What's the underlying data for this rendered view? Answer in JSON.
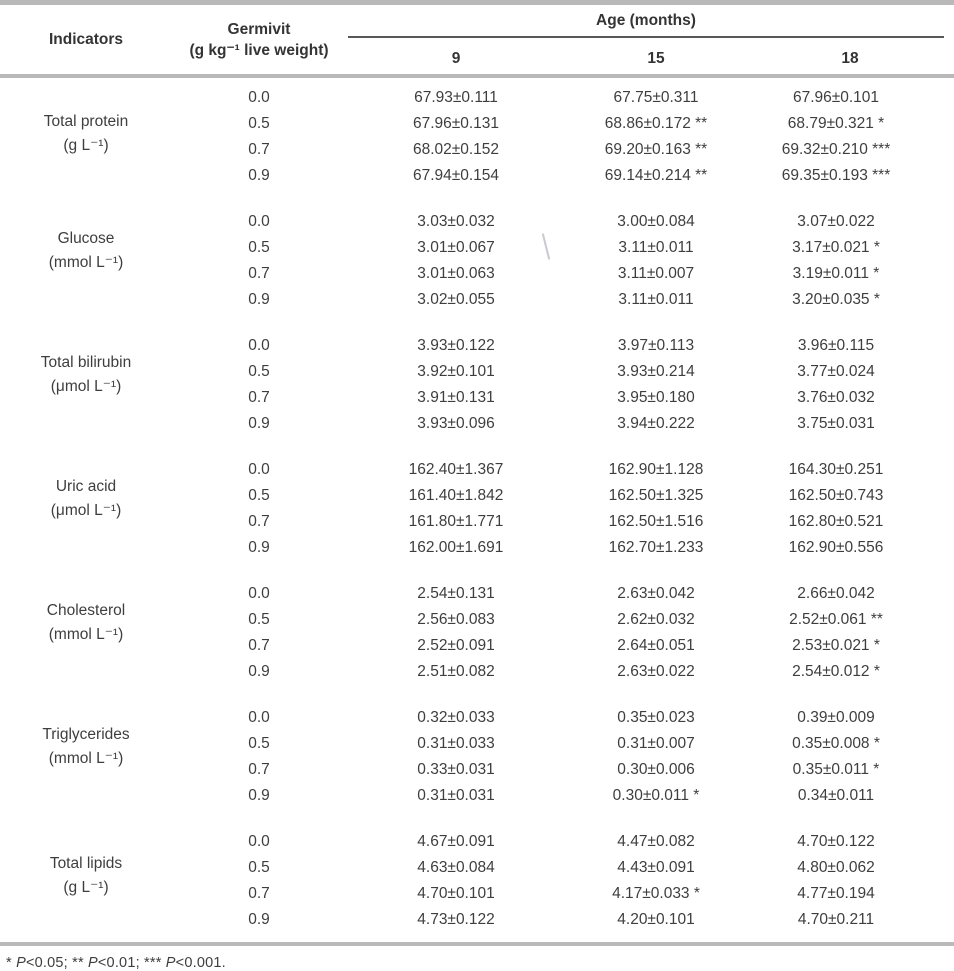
{
  "colors": {
    "rule": "#b9b9b9",
    "age_underline": "#58585a",
    "text": "#3e3e3e",
    "header_text": "#343434",
    "background": "#ffffff",
    "artifact": "#c9c9cf"
  },
  "table": {
    "header": {
      "indicators": "Indicators",
      "germivit_line1": "Germivit",
      "germivit_line2": "(g kg⁻¹ live weight)",
      "age_label": "Age (months)",
      "age_columns": [
        "9",
        "15",
        "18"
      ]
    },
    "groups": [
      {
        "name": "Total protein",
        "unit": "(g L⁻¹)",
        "rows": [
          {
            "dose": "0.0",
            "values": [
              "67.93±0.111",
              "67.75±0.311",
              "67.96±0.101"
            ]
          },
          {
            "dose": "0.5",
            "values": [
              "67.96±0.131",
              "68.86±0.172 **",
              "68.79±0.321 *"
            ]
          },
          {
            "dose": "0.7",
            "values": [
              "68.02±0.152",
              "69.20±0.163 **",
              "69.32±0.210 ***"
            ]
          },
          {
            "dose": "0.9",
            "values": [
              "67.94±0.154",
              "69.14±0.214 **",
              "69.35±0.193 ***"
            ]
          }
        ]
      },
      {
        "name": "Glucose",
        "unit": "(mmol L⁻¹)",
        "rows": [
          {
            "dose": "0.0",
            "values": [
              "3.03±0.032",
              "3.00±0.084",
              "3.07±0.022"
            ]
          },
          {
            "dose": "0.5",
            "values": [
              "3.01±0.067",
              "3.11±0.011",
              "3.17±0.021 *"
            ]
          },
          {
            "dose": "0.7",
            "values": [
              "3.01±0.063",
              "3.11±0.007",
              "3.19±0.011 *"
            ]
          },
          {
            "dose": "0.9",
            "values": [
              "3.02±0.055",
              "3.11±0.011",
              "3.20±0.035 *"
            ]
          }
        ]
      },
      {
        "name": "Total bilirubin",
        "unit": "(μmol L⁻¹)",
        "rows": [
          {
            "dose": "0.0",
            "values": [
              "3.93±0.122",
              "3.97±0.113",
              "3.96±0.115"
            ]
          },
          {
            "dose": "0.5",
            "values": [
              "3.92±0.101",
              "3.93±0.214",
              "3.77±0.024"
            ]
          },
          {
            "dose": "0.7",
            "values": [
              "3.91±0.131",
              "3.95±0.180",
              "3.76±0.032"
            ]
          },
          {
            "dose": "0.9",
            "values": [
              "3.93±0.096",
              "3.94±0.222",
              "3.75±0.031"
            ]
          }
        ]
      },
      {
        "name": "Uric acid",
        "unit": "(μmol L⁻¹)",
        "rows": [
          {
            "dose": "0.0",
            "values": [
              "162.40±1.367",
              "162.90±1.128",
              "164.30±0.251"
            ]
          },
          {
            "dose": "0.5",
            "values": [
              "161.40±1.842",
              "162.50±1.325",
              "162.50±0.743"
            ]
          },
          {
            "dose": "0.7",
            "values": [
              "161.80±1.771",
              "162.50±1.516",
              "162.80±0.521"
            ]
          },
          {
            "dose": "0.9",
            "values": [
              "162.00±1.691",
              "162.70±1.233",
              "162.90±0.556"
            ]
          }
        ]
      },
      {
        "name": "Cholesterol",
        "unit": "(mmol L⁻¹)",
        "rows": [
          {
            "dose": "0.0",
            "values": [
              "2.54±0.131",
              "2.63±0.042",
              "2.66±0.042"
            ]
          },
          {
            "dose": "0.5",
            "values": [
              "2.56±0.083",
              "2.62±0.032",
              "2.52±0.061 **"
            ]
          },
          {
            "dose": "0.7",
            "values": [
              "2.52±0.091",
              "2.64±0.051",
              "2.53±0.021 *"
            ]
          },
          {
            "dose": "0.9",
            "values": [
              "2.51±0.082",
              "2.63±0.022",
              "2.54±0.012 *"
            ]
          }
        ]
      },
      {
        "name": "Triglycerides",
        "unit": "(mmol L⁻¹)",
        "rows": [
          {
            "dose": "0.0",
            "values": [
              "0.32±0.033",
              "0.35±0.023",
              "0.39±0.009"
            ]
          },
          {
            "dose": "0.5",
            "values": [
              "0.31±0.033",
              "0.31±0.007",
              "0.35±0.008 *"
            ]
          },
          {
            "dose": "0.7",
            "values": [
              "0.33±0.031",
              "0.30±0.006",
              "0.35±0.011 *"
            ]
          },
          {
            "dose": "0.9",
            "values": [
              "0.31±0.031",
              "0.30±0.011 *",
              "0.34±0.011"
            ]
          }
        ]
      },
      {
        "name": "Total lipids",
        "unit": "(g L⁻¹)",
        "rows": [
          {
            "dose": "0.0",
            "values": [
              "4.67±0.091",
              "4.47±0.082",
              "4.70±0.122"
            ]
          },
          {
            "dose": "0.5",
            "values": [
              "4.63±0.084",
              "4.43±0.091",
              "4.80±0.062"
            ]
          },
          {
            "dose": "0.7",
            "values": [
              "4.70±0.101",
              "4.17±0.033 *",
              "4.77±0.194"
            ]
          },
          {
            "dose": "0.9",
            "values": [
              "4.73±0.122",
              "4.20±0.101",
              "4.70±0.211"
            ]
          }
        ]
      }
    ],
    "footnote_segments": [
      {
        "text": "* ",
        "italic": false
      },
      {
        "text": "P",
        "italic": true
      },
      {
        "text": "<0.05; ** ",
        "italic": false
      },
      {
        "text": "P",
        "italic": true
      },
      {
        "text": "<0.01; *** ",
        "italic": false
      },
      {
        "text": "P",
        "italic": true
      },
      {
        "text": "<0.001.",
        "italic": false
      }
    ]
  }
}
